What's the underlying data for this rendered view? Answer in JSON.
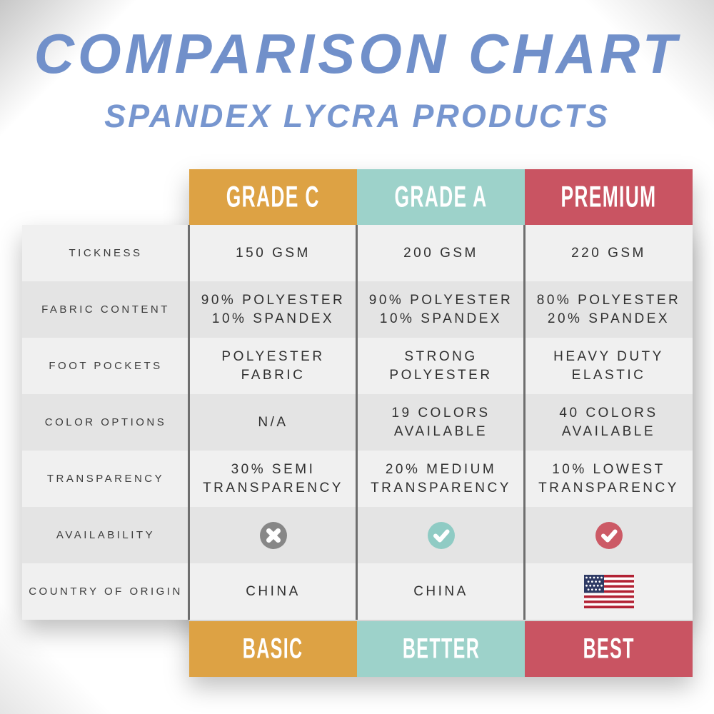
{
  "chart_data": {
    "type": "table",
    "title": "COMPARISON CHART",
    "subtitle": "SPANDEX LYCRA PRODUCTS",
    "columns": [
      {
        "header": "GRADE C",
        "footer": "BASIC",
        "color": "#DDA244"
      },
      {
        "header": "GRADE A",
        "footer": "BETTER",
        "color": "#9DD2CA"
      },
      {
        "header": "PREMIUM",
        "footer": "BEST",
        "color": "#C95462"
      }
    ],
    "rows": [
      {
        "label": "TICKNESS",
        "values": [
          "150 GSM",
          "200 GSM",
          "220 GSM"
        ]
      },
      {
        "label": "FABRIC CONTENT",
        "values": [
          "90% POLYESTER\n10% SPANDEX",
          "90% POLYESTER\n10% SPANDEX",
          "80% POLYESTER\n20% SPANDEX"
        ]
      },
      {
        "label": "FOOT POCKETS",
        "values": [
          "POLYESTER\nFABRIC",
          "STRONG\nPOLYESTER",
          "HEAVY DUTY\nELASTIC"
        ]
      },
      {
        "label": "COLOR OPTIONS",
        "values": [
          "N/A",
          "19 COLORS\nAVAILABLE",
          "40 COLORS\nAVAILABLE"
        ]
      },
      {
        "label": "TRANSPARENCY",
        "values": [
          "30% SEMI\nTRANSPARENCY",
          "20% MEDIUM\nTRANSPARENCY",
          "10% LOWEST\nTRANSPARENCY"
        ]
      },
      {
        "label": "AVAILABILITY",
        "values": [
          {
            "icon": "cross-circle-icon",
            "bg": "#878787"
          },
          {
            "icon": "check-circle-icon",
            "bg": "#8FCBC4"
          },
          {
            "icon": "check-circle-icon",
            "bg": "#CC5A66"
          }
        ]
      },
      {
        "label": "COUNTRY OF ORIGIN",
        "values": [
          "CHINA",
          "CHINA",
          {
            "icon": "usa-flag-icon"
          }
        ]
      }
    ],
    "legend_position": "none",
    "grid": "striped-rows"
  },
  "theme": {
    "title_color": "#7190CA",
    "subtitle_color": "#7796CF",
    "row_light": "#F0F0F0",
    "row_dark": "#E4E4E4",
    "separator": "#6E6E6E",
    "label_text": "#3C3C3C",
    "value_text": "#303030"
  },
  "flag_colors": {
    "red": "#B22234",
    "blue": "#2E3A64",
    "white": "#FFFFFF"
  }
}
